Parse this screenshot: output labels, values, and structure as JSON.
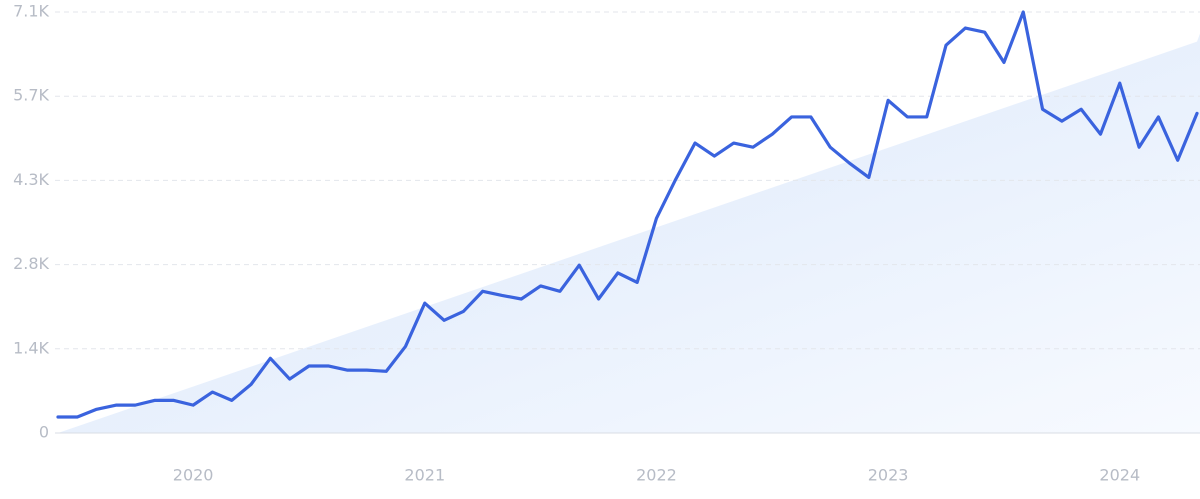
{
  "chart_data": {
    "type": "line",
    "categories": [
      null,
      null,
      null,
      null,
      null,
      null,
      null,
      "2020",
      null,
      null,
      null,
      null,
      null,
      null,
      null,
      null,
      null,
      null,
      null,
      "2021",
      null,
      null,
      null,
      null,
      null,
      null,
      null,
      null,
      null,
      null,
      null,
      "2022",
      null,
      null,
      null,
      null,
      null,
      null,
      null,
      null,
      null,
      null,
      null,
      "2023",
      null,
      null,
      null,
      null,
      null,
      null,
      null,
      null,
      null,
      null,
      null,
      "2024",
      null,
      null,
      null,
      null
    ],
    "series": [
      {
        "color": "#3a63de",
        "values": [
          270,
          270,
          400,
          470,
          470,
          550,
          550,
          470,
          690,
          550,
          820,
          1260,
          910,
          1130,
          1130,
          1060,
          1060,
          1040,
          1460,
          2190,
          1900,
          2050,
          2390,
          2320,
          2260,
          2480,
          2390,
          2830,
          2260,
          2700,
          2540,
          3620,
          4280,
          4890,
          4670,
          4890,
          4820,
          5040,
          5330,
          5330,
          4820,
          4550,
          4310,
          5610,
          5330,
          5330,
          6540,
          6830,
          6760,
          6250,
          7100,
          5460,
          5260,
          5460,
          5040,
          5900,
          4820,
          5330,
          4600,
          5390
        ]
      }
    ],
    "trend": {
      "color": "#dce8fa",
      "values": [
        0,
        6600
      ]
    },
    "ylim": [
      0,
      7100
    ],
    "yticks": [
      0,
      {
        "value": 1420,
        "label": "1.4K"
      },
      {
        "value": 2840,
        "label": "2.8K"
      },
      {
        "value": 4260,
        "label": "4.3K"
      },
      {
        "value": 5680,
        "label": "5.7K"
      },
      {
        "value": 7100,
        "label": "7.1K"
      }
    ],
    "grid": true
  }
}
